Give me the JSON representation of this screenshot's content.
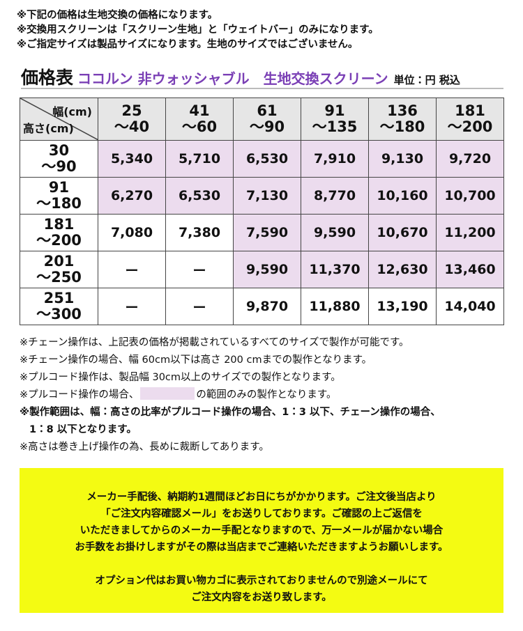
{
  "notes_top": [
    "※下記の価格は生地交換の価格になります。",
    "※交換用スクリーンは「スクリーン生地」と「ウェイトバー」のみになります。",
    "※ご指定サイズは製品サイズになります。生地のサイズではございません。"
  ],
  "header": {
    "title": "価格表",
    "product": "ココルン 非ウォッシャブル　生地交換スクリーン",
    "unit": "単位：円 税込"
  },
  "table": {
    "width_label": "幅(cm)",
    "height_label": "高さ(cm)",
    "columns": [
      [
        "25",
        "～40"
      ],
      [
        "41",
        "～60"
      ],
      [
        "61",
        "～90"
      ],
      [
        "91",
        "～135"
      ],
      [
        "136",
        "～180"
      ],
      [
        "181",
        "～200"
      ]
    ],
    "rows": [
      {
        "label": [
          "30",
          "～90"
        ],
        "cells": [
          "5,340",
          "5,710",
          "6,530",
          "7,910",
          "9,130",
          "9,720"
        ],
        "shaded": [
          true,
          true,
          true,
          true,
          true,
          true
        ]
      },
      {
        "label": [
          "91",
          "～180"
        ],
        "cells": [
          "6,270",
          "6,530",
          "7,130",
          "8,770",
          "10,160",
          "10,700"
        ],
        "shaded": [
          true,
          true,
          true,
          true,
          true,
          true
        ]
      },
      {
        "label": [
          "181",
          "～200"
        ],
        "cells": [
          "7,080",
          "7,380",
          "7,590",
          "9,590",
          "10,670",
          "11,200"
        ],
        "shaded": [
          false,
          false,
          true,
          true,
          true,
          true
        ]
      },
      {
        "label": [
          "201",
          "～250"
        ],
        "cells": [
          "ー",
          "ー",
          "9,590",
          "11,370",
          "12,630",
          "13,460"
        ],
        "shaded": [
          false,
          false,
          true,
          true,
          true,
          true
        ]
      },
      {
        "label": [
          "251",
          "～300"
        ],
        "cells": [
          "ー",
          "ー",
          "9,870",
          "11,880",
          "13,190",
          "14,040"
        ],
        "shaded": [
          false,
          false,
          false,
          false,
          false,
          false
        ]
      }
    ]
  },
  "notes_bottom": {
    "chain": "※チェーン操作は、上記表の価格が掲載されているすべてのサイズで製作が可能です。",
    "chain_limit": "※チェーン操作の場合、幅 60cm以下は高さ 200 cmまでの製作となります。",
    "pull": "※プルコード操作は、製品幅 30cm以上のサイズでの製作となります。",
    "pull_range": [
      "※プルコード操作の場合、",
      "の範囲のみの製作となります。"
    ],
    "ratio": [
      "※製作範囲は、幅：高さの比率がプルコード操作の場合、1：3 以下、チェーン操作の場合、",
      "1：8 以下となります。"
    ],
    "cut": "※高さは巻き上げ操作の為、長めに裁断してあります。"
  },
  "notice": {
    "paragraphs": [
      [
        "メーカー手配後、納期約1週間ほどお日にちがかかります。ご注文後当店より",
        "「ご注文内容確認メール」をお送りしております。ご確認の上ご返信を",
        "いただきましてからのメーカー手配となりますので、万一メールが届かない場合",
        "お手数をお掛けしますがその際は当店までご連絡いただきますようお願いします。"
      ],
      [
        "オプション代はお買い物カゴに表示されておりませんので別途メールにて",
        "ご注文内容をお送り致します。"
      ]
    ]
  }
}
